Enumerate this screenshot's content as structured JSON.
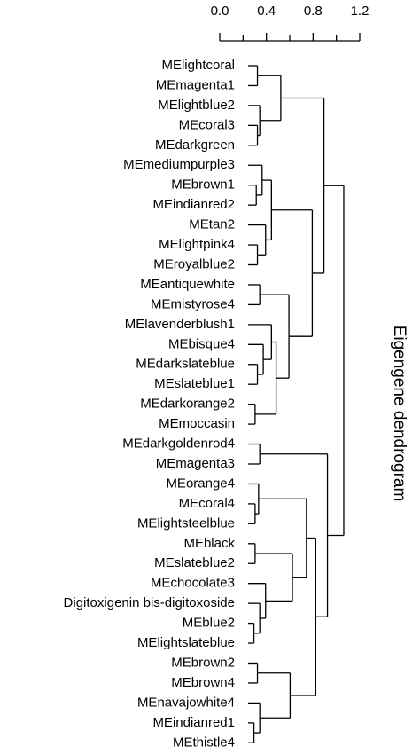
{
  "title": "Eigengene dendrogram",
  "scale": {
    "ticks": [
      "0.0",
      "0.4",
      "0.8",
      "1.2"
    ],
    "minor_ticks": [
      0.2,
      0.6,
      1.0
    ],
    "range": [
      0,
      1.2
    ]
  },
  "leaves": [
    "MElightcoral",
    "MEmagenta1",
    "MElightblue2",
    "MEcoral3",
    "MEdarkgreen",
    "MEmediumpurple3",
    "MEbrown1",
    "MEindianred2",
    "MEtan2",
    "MElightpink4",
    "MEroyalblue2",
    "MEantiquewhite",
    "MEmistyrose4",
    "MElavenderblush1",
    "MEbisque4",
    "MEdarkslateblue",
    "MEslateblue1",
    "MEdarkorange2",
    "MEmoccasin",
    "MEdarkgoldenrod4",
    "MEmagenta3",
    "MEorange4",
    "MEcoral4",
    "MElightsteelblue",
    "MEblack",
    "MEslateblue2",
    "MEchocolate3",
    "Digitoxigenin bis-digitoxoside",
    "MEblue2",
    "MElightslateblue",
    "MEbrown2",
    "MEbrown4",
    "MEnavajowhite4",
    "MEindianred1",
    "MEthistle4"
  ],
  "merges": [
    {
      "a": 0,
      "b": 1,
      "h": 0.08
    },
    {
      "a": 3,
      "b": 4,
      "h": 0.08
    },
    {
      "a": 2,
      "b": 36,
      "h": 0.1
    },
    {
      "a": 35,
      "b": 37,
      "h": 0.28
    },
    {
      "a": 6,
      "b": 7,
      "h": 0.07
    },
    {
      "a": 5,
      "b": 39,
      "h": 0.12
    },
    {
      "a": 9,
      "b": 10,
      "h": 0.08
    },
    {
      "a": 8,
      "b": 41,
      "h": 0.15
    },
    {
      "a": 40,
      "b": 42,
      "h": 0.2
    },
    {
      "a": 11,
      "b": 12,
      "h": 0.1
    },
    {
      "a": 15,
      "b": 16,
      "h": 0.08
    },
    {
      "a": 14,
      "b": 45,
      "h": 0.13
    },
    {
      "a": 13,
      "b": 46,
      "h": 0.2
    },
    {
      "a": 17,
      "b": 18,
      "h": 0.06
    },
    {
      "a": 47,
      "b": 48,
      "h": 0.24
    },
    {
      "a": 44,
      "b": 49,
      "h": 0.35
    },
    {
      "a": 43,
      "b": 50,
      "h": 0.55
    },
    {
      "a": 38,
      "b": 51,
      "h": 0.65
    },
    {
      "a": 19,
      "b": 20,
      "h": 0.1
    },
    {
      "a": 22,
      "b": 23,
      "h": 0.06
    },
    {
      "a": 21,
      "b": 54,
      "h": 0.09
    },
    {
      "a": 24,
      "b": 25,
      "h": 0.06
    },
    {
      "a": 28,
      "b": 29,
      "h": 0.05
    },
    {
      "a": 27,
      "b": 57,
      "h": 0.1
    },
    {
      "a": 26,
      "b": 58,
      "h": 0.15
    },
    {
      "a": 56,
      "b": 59,
      "h": 0.38
    },
    {
      "a": 55,
      "b": 60,
      "h": 0.5
    },
    {
      "a": 30,
      "b": 31,
      "h": 0.08
    },
    {
      "a": 33,
      "b": 34,
      "h": 0.05
    },
    {
      "a": 32,
      "b": 63,
      "h": 0.1
    },
    {
      "a": 62,
      "b": 64,
      "h": 0.36
    },
    {
      "a": 61,
      "b": 65,
      "h": 0.58
    },
    {
      "a": 53,
      "b": 66,
      "h": 0.68
    },
    {
      "a": 52,
      "b": 67,
      "h": 0.82
    }
  ]
}
